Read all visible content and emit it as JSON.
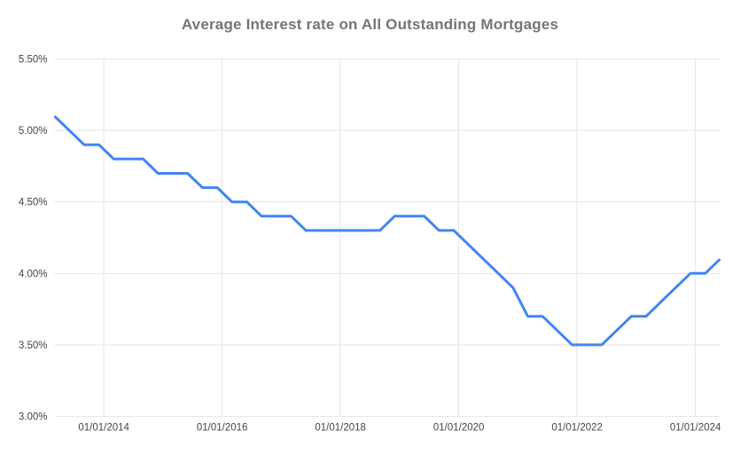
{
  "title": "Average Interest rate on All Outstanding Mortgages",
  "chart_data": {
    "type": "line",
    "title": "Average Interest rate on All Outstanding Mortgages",
    "ylabel": "",
    "xlabel": "",
    "unit": "percent",
    "ylim": [
      3.0,
      5.5
    ],
    "grid": true,
    "legend_position": "none",
    "y_ticks": [
      {
        "label": "5.50%",
        "value": 5.5
      },
      {
        "label": "5.00%",
        "value": 5.0
      },
      {
        "label": "4.50%",
        "value": 4.5
      },
      {
        "label": "4.00%",
        "value": 4.0
      },
      {
        "label": "3.50%",
        "value": 3.5
      },
      {
        "label": "3.00%",
        "value": 3.0
      }
    ],
    "x_ticks": [
      {
        "label": "01/01/2014",
        "month_index": 10
      },
      {
        "label": "01/01/2016",
        "month_index": 34
      },
      {
        "label": "01/01/2018",
        "month_index": 58
      },
      {
        "label": "01/01/2020",
        "month_index": 82
      },
      {
        "label": "01/01/2022",
        "month_index": 106
      },
      {
        "label": "01/01/2024",
        "month_index": 130
      }
    ],
    "x_month_span": 135,
    "colors": {
      "line": "#4285f4",
      "grid": "#e6e6e6",
      "axis_label": "#444444",
      "title": "#757575",
      "background": "#ffffff"
    },
    "series": [
      {
        "name": "Average interest rate on all outstanding mortgages",
        "color": "#4285f4",
        "points": [
          {
            "date": "2013-03",
            "value": 5.1
          },
          {
            "date": "2013-06",
            "value": 5.0
          },
          {
            "date": "2013-09",
            "value": 4.9
          },
          {
            "date": "2013-12",
            "value": 4.9
          },
          {
            "date": "2014-03",
            "value": 4.8
          },
          {
            "date": "2014-06",
            "value": 4.8
          },
          {
            "date": "2014-09",
            "value": 4.8
          },
          {
            "date": "2014-12",
            "value": 4.7
          },
          {
            "date": "2015-03",
            "value": 4.7
          },
          {
            "date": "2015-06",
            "value": 4.7
          },
          {
            "date": "2015-09",
            "value": 4.6
          },
          {
            "date": "2015-12",
            "value": 4.6
          },
          {
            "date": "2016-03",
            "value": 4.5
          },
          {
            "date": "2016-06",
            "value": 4.5
          },
          {
            "date": "2016-09",
            "value": 4.4
          },
          {
            "date": "2016-12",
            "value": 4.4
          },
          {
            "date": "2017-03",
            "value": 4.4
          },
          {
            "date": "2017-06",
            "value": 4.3
          },
          {
            "date": "2017-09",
            "value": 4.3
          },
          {
            "date": "2017-12",
            "value": 4.3
          },
          {
            "date": "2018-03",
            "value": 4.3
          },
          {
            "date": "2018-06",
            "value": 4.3
          },
          {
            "date": "2018-09",
            "value": 4.3
          },
          {
            "date": "2018-12",
            "value": 4.4
          },
          {
            "date": "2019-03",
            "value": 4.4
          },
          {
            "date": "2019-06",
            "value": 4.4
          },
          {
            "date": "2019-09",
            "value": 4.3
          },
          {
            "date": "2019-12",
            "value": 4.3
          },
          {
            "date": "2020-03",
            "value": 4.2
          },
          {
            "date": "2020-06",
            "value": 4.1
          },
          {
            "date": "2020-09",
            "value": 4.0
          },
          {
            "date": "2020-12",
            "value": 3.9
          },
          {
            "date": "2021-03",
            "value": 3.7
          },
          {
            "date": "2021-06",
            "value": 3.7
          },
          {
            "date": "2021-09",
            "value": 3.6
          },
          {
            "date": "2021-12",
            "value": 3.5
          },
          {
            "date": "2022-03",
            "value": 3.5
          },
          {
            "date": "2022-06",
            "value": 3.5
          },
          {
            "date": "2022-09",
            "value": 3.6
          },
          {
            "date": "2022-12",
            "value": 3.7
          },
          {
            "date": "2023-03",
            "value": 3.7
          },
          {
            "date": "2023-06",
            "value": 3.8
          },
          {
            "date": "2023-09",
            "value": 3.9
          },
          {
            "date": "2023-12",
            "value": 4.0
          },
          {
            "date": "2024-03",
            "value": 4.0
          },
          {
            "date": "2024-06",
            "value": 4.1
          }
        ]
      }
    ]
  }
}
